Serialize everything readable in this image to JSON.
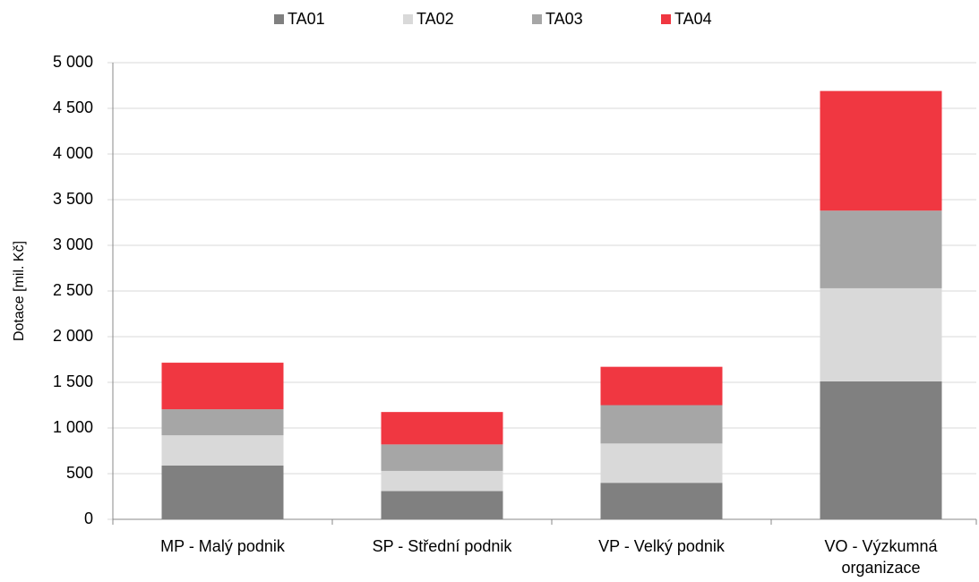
{
  "chart_data": {
    "type": "stacked_bar",
    "ylabel": "Dotace [mil. Kč]",
    "categories": [
      "MP - Malý podnik",
      "SP - Střední podnik",
      "VP - Velký podnik",
      "VO - Výzkumná organizace"
    ],
    "series": [
      {
        "name": "TA01",
        "color": "#808080",
        "values": [
          590,
          310,
          400,
          1510
        ]
      },
      {
        "name": "TA02",
        "color": "#d9d9d9",
        "values": [
          330,
          220,
          430,
          1020
        ]
      },
      {
        "name": "TA03",
        "color": "#a6a6a6",
        "values": [
          285,
          290,
          420,
          850
        ]
      },
      {
        "name": "TA04",
        "color": "#f03741",
        "values": [
          510,
          355,
          420,
          1310
        ]
      }
    ],
    "ylim": [
      0,
      5000
    ],
    "yticks": [
      0,
      500,
      {
        "value": 1000,
        "label": "1 000"
      },
      {
        "value": 1500,
        "label": "1 500"
      },
      {
        "value": 2000,
        "label": "2 000"
      },
      {
        "value": 2500,
        "label": "2 500"
      },
      {
        "value": 3000,
        "label": "3 000"
      },
      {
        "value": 3500,
        "label": "3 500"
      },
      {
        "value": 4000,
        "label": "4 000"
      },
      {
        "value": 4500,
        "label": "4 500"
      },
      {
        "value": 5000,
        "label": "5 000"
      }
    ],
    "grid": true,
    "legend": "top"
  }
}
